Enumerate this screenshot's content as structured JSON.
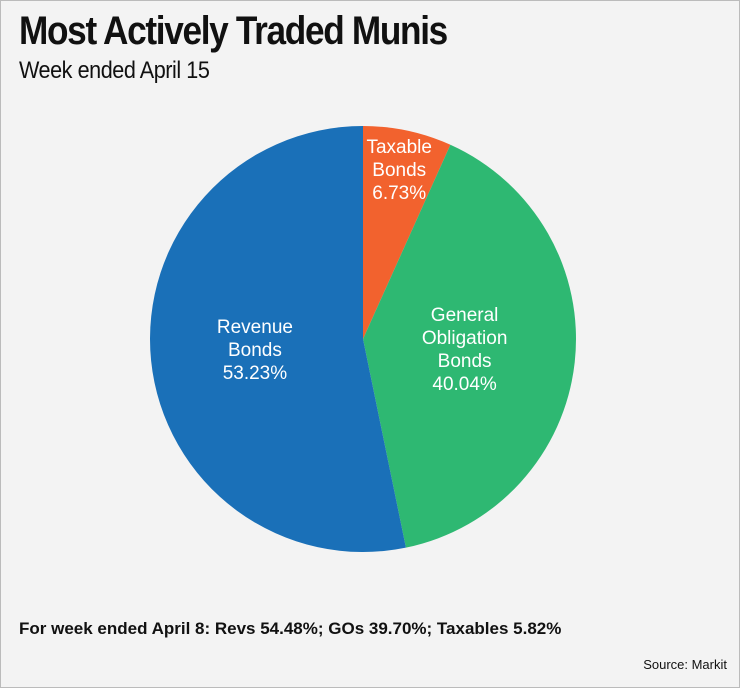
{
  "chart_data": {
    "type": "pie",
    "title": "Most Actively Traded Munis",
    "subtitle": "Week ended April 15",
    "categories": [
      "Taxable Bonds",
      "General Obligation Bonds",
      "Revenue Bonds"
    ],
    "values": [
      6.73,
      40.04,
      53.23
    ],
    "value_labels": [
      "6.73%",
      "40.04%",
      "53.23%"
    ],
    "colors": [
      "#f2622e",
      "#2eb872",
      "#1a70b8"
    ],
    "annotation": "For week ended April 8: Revs 54.48%; GOs 39.70%; Taxables 5.82%",
    "source": "Source: Markit"
  }
}
